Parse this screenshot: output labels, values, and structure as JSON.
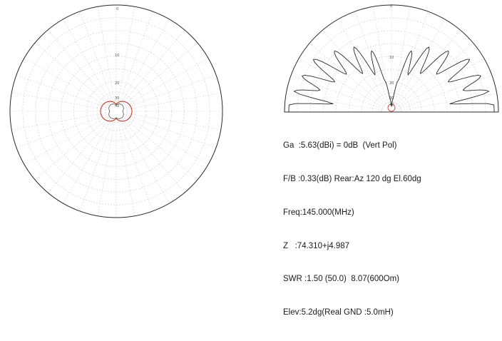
{
  "window": {
    "background": "#ffffff"
  },
  "azimuth_plot": {
    "ring_labels": [
      "0",
      "10",
      "20",
      "30",
      "40"
    ],
    "grid_color": "#d3d3d3",
    "outline_color": "#2a2a2a",
    "pattern_color": "#c0392b"
  },
  "elevation_plot": {
    "ring_labels": [
      "0",
      "10",
      "20",
      "30",
      "40"
    ],
    "grid_color": "#d3d3d3",
    "outline_color": "#2a2a2a",
    "pattern_color": "#2a2a2a"
  },
  "readout": {
    "lines": [
      "Ga  :5.63(dBi) = 0dB  (Vert Pol)",
      "F/B :0.33(dB) Rear:Az 120 dg El.60dg",
      "Freq:145.000(MHz)",
      "Z   :74.310+j4.987",
      "SWR :1.50 (50.0)  8.07(600Om)",
      "Elev:5.2dg(Real GND :5.0mH)"
    ],
    "text_color": "#1a1a1a"
  }
}
